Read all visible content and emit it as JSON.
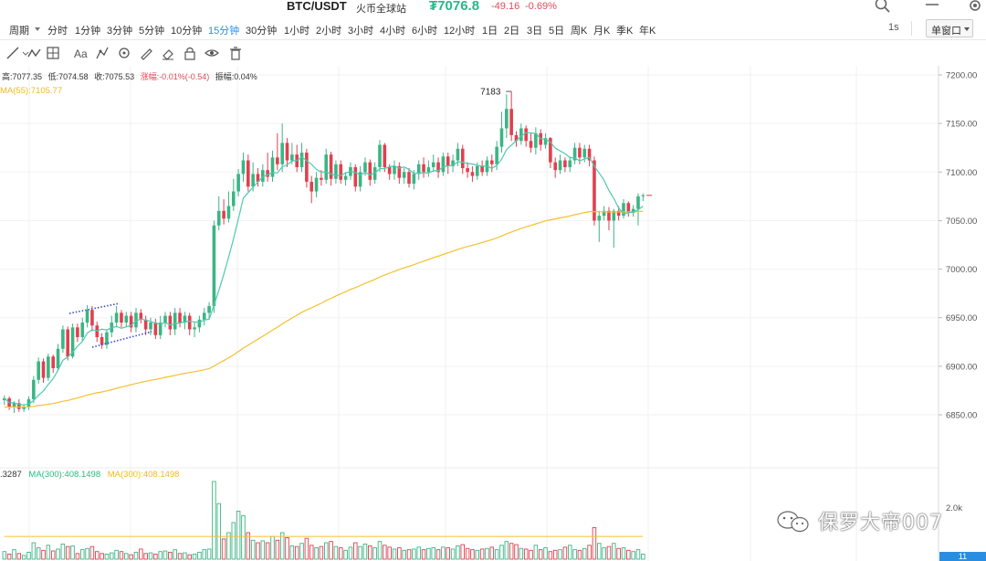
{
  "header": {
    "pair": "BTC/USDT",
    "exchange": "火币全球站",
    "price": "₮7076.8",
    "change": "-49.16",
    "change_pct": "-0.69%"
  },
  "intervals": {
    "period_label": "周期",
    "items": [
      "分时",
      "1分钟",
      "3分钟",
      "5分钟",
      "10分钟",
      "15分钟",
      "30分钟",
      "1小时",
      "2小时",
      "3小时",
      "4小时",
      "6小时",
      "12小时",
      "1日",
      "2日",
      "3日",
      "5日",
      "周K",
      "月K",
      "季K",
      "年K"
    ],
    "active": "15分钟",
    "sec_label": "1s",
    "window_mode": "单窗口"
  },
  "ohlc": {
    "high": "高:7077.35",
    "low": "低:7074.58",
    "close": "收:7075.53",
    "change": "涨幅:-0.01%(-0.54)",
    "amplitude": "振幅:0.04%"
  },
  "ma55_label": "MA(55):7105.77",
  "volume": {
    "value": ".3287",
    "ma_a": "MA(300):408.1498",
    "ma_b": "MA(300):408.1498",
    "axis_label": "2.0k"
  },
  "watermark": "保罗大帝007",
  "current_price_tag": "11",
  "colors": {
    "up": "#3bb584",
    "down": "#e0404f",
    "ma55": "#f5c02f",
    "ma_short": "#4ec9b0",
    "accent": "#2a8ee0"
  },
  "chart_data": {
    "type": "candlestick",
    "y_ticks": [
      7200,
      7150,
      7100,
      7050,
      7000,
      6950,
      6900,
      6850
    ],
    "y_tick_labels": [
      "7200.00",
      "7150.00",
      "7100.00",
      "7050.00",
      "7000.00",
      "6950.00",
      "6900.00",
      "6850.00"
    ],
    "ylim": [
      6830,
      7210
    ],
    "high_annotation": "7183",
    "candles": [
      [
        6865,
        6867,
        6860,
        6870
      ],
      [
        6867,
        6858,
        6855,
        6869
      ],
      [
        6858,
        6862,
        6852,
        6864
      ],
      [
        6862,
        6856,
        6853,
        6866
      ],
      [
        6856,
        6858,
        6853,
        6861
      ],
      [
        6858,
        6866,
        6855,
        6869
      ],
      [
        6866,
        6886,
        6862,
        6890
      ],
      [
        6886,
        6905,
        6882,
        6909
      ],
      [
        6905,
        6888,
        6883,
        6908
      ],
      [
        6888,
        6910,
        6885,
        6913
      ],
      [
        6910,
        6898,
        6893,
        6912
      ],
      [
        6898,
        6918,
        6895,
        6923
      ],
      [
        6918,
        6938,
        6914,
        6942
      ],
      [
        6938,
        6910,
        6906,
        6941
      ],
      [
        6910,
        6940,
        6908,
        6944
      ],
      [
        6940,
        6930,
        6925,
        6944
      ],
      [
        6930,
        6945,
        6926,
        6950
      ],
      [
        6945,
        6958,
        6940,
        6963
      ],
      [
        6958,
        6942,
        6936,
        6962
      ],
      [
        6942,
        6930,
        6925,
        6946
      ],
      [
        6930,
        6922,
        6918,
        6934
      ],
      [
        6922,
        6935,
        6918,
        6938
      ],
      [
        6935,
        6945,
        6930,
        6952
      ],
      [
        6945,
        6955,
        6940,
        6962
      ],
      [
        6955,
        6945,
        6940,
        6958
      ],
      [
        6945,
        6952,
        6940,
        6956
      ],
      [
        6952,
        6940,
        6935,
        6956
      ],
      [
        6940,
        6955,
        6935,
        6960
      ],
      [
        6955,
        6948,
        6944,
        6959
      ],
      [
        6948,
        6938,
        6932,
        6952
      ],
      [
        6938,
        6945,
        6932,
        6950
      ],
      [
        6945,
        6932,
        6928,
        6949
      ],
      [
        6932,
        6945,
        6928,
        6952
      ],
      [
        6945,
        6952,
        6940,
        6956
      ],
      [
        6952,
        6938,
        6932,
        6956
      ],
      [
        6938,
        6955,
        6932,
        6960
      ],
      [
        6955,
        6945,
        6940,
        6960
      ],
      [
        6945,
        6952,
        6938,
        6956
      ],
      [
        6952,
        6938,
        6932,
        6955
      ],
      [
        6938,
        6940,
        6930,
        6946
      ],
      [
        6940,
        6948,
        6935,
        6952
      ],
      [
        6948,
        6955,
        6942,
        6960
      ],
      [
        6955,
        6962,
        6948,
        6966
      ],
      [
        6962,
        7045,
        6955,
        7050
      ],
      [
        7045,
        7060,
        7040,
        7075
      ],
      [
        7060,
        7052,
        7046,
        7072
      ],
      [
        7052,
        7065,
        7048,
        7080
      ],
      [
        7065,
        7080,
        7060,
        7093
      ],
      [
        7080,
        7098,
        7075,
        7103
      ],
      [
        7098,
        7112,
        7090,
        7120
      ],
      [
        7112,
        7085,
        7080,
        7118
      ],
      [
        7085,
        7098,
        7080,
        7110
      ],
      [
        7098,
        7090,
        7085,
        7104
      ],
      [
        7090,
        7102,
        7085,
        7108
      ],
      [
        7102,
        7095,
        7090,
        7120
      ],
      [
        7095,
        7115,
        7090,
        7122
      ],
      [
        7115,
        7108,
        7102,
        7140
      ],
      [
        7108,
        7130,
        7100,
        7150
      ],
      [
        7130,
        7112,
        7105,
        7135
      ],
      [
        7112,
        7118,
        7108,
        7130
      ],
      [
        7118,
        7105,
        7100,
        7128
      ],
      [
        7105,
        7120,
        7100,
        7130
      ],
      [
        7120,
        7090,
        7084,
        7124
      ],
      [
        7090,
        7080,
        7068,
        7096
      ],
      [
        7080,
        7094,
        7074,
        7100
      ],
      [
        7094,
        7092,
        7086,
        7102
      ],
      [
        7092,
        7118,
        7088,
        7124
      ],
      [
        7118,
        7093,
        7086,
        7121
      ],
      [
        7093,
        7108,
        7088,
        7112
      ],
      [
        7108,
        7092,
        7088,
        7112
      ],
      [
        7092,
        7096,
        7086,
        7100
      ],
      [
        7096,
        7105,
        7092,
        7110
      ],
      [
        7105,
        7085,
        7080,
        7108
      ],
      [
        7085,
        7100,
        7080,
        7106
      ],
      [
        7100,
        7110,
        7096,
        7115
      ],
      [
        7110,
        7092,
        7086,
        7113
      ],
      [
        7092,
        7105,
        7088,
        7110
      ],
      [
        7105,
        7128,
        7100,
        7133
      ],
      [
        7128,
        7105,
        7100,
        7130
      ],
      [
        7105,
        7098,
        7092,
        7108
      ],
      [
        7098,
        7106,
        7092,
        7112
      ],
      [
        7106,
        7094,
        7088,
        7110
      ],
      [
        7094,
        7100,
        7088,
        7104
      ],
      [
        7100,
        7088,
        7084,
        7104
      ],
      [
        7088,
        7098,
        7082,
        7102
      ],
      [
        7098,
        7108,
        7092,
        7112
      ],
      [
        7108,
        7100,
        7094,
        7115
      ],
      [
        7100,
        7105,
        7095,
        7112
      ],
      [
        7105,
        7110,
        7100,
        7118
      ],
      [
        7110,
        7100,
        7094,
        7115
      ],
      [
        7100,
        7116,
        7096,
        7120
      ],
      [
        7116,
        7106,
        7098,
        7120
      ],
      [
        7106,
        7112,
        7100,
        7118
      ],
      [
        7112,
        7124,
        7106,
        7130
      ],
      [
        7124,
        7104,
        7098,
        7128
      ],
      [
        7104,
        7100,
        7094,
        7110
      ],
      [
        7100,
        7096,
        7090,
        7106
      ],
      [
        7096,
        7106,
        7092,
        7110
      ],
      [
        7106,
        7100,
        7096,
        7112
      ],
      [
        7100,
        7112,
        7096,
        7116
      ],
      [
        7112,
        7108,
        7100,
        7118
      ],
      [
        7108,
        7126,
        7102,
        7132
      ],
      [
        7126,
        7145,
        7120,
        7162
      ],
      [
        7145,
        7165,
        7135,
        7180
      ],
      [
        7165,
        7138,
        7132,
        7183
      ],
      [
        7138,
        7132,
        7126,
        7142
      ],
      [
        7132,
        7145,
        7128,
        7150
      ],
      [
        7145,
        7132,
        7126,
        7148
      ],
      [
        7132,
        7125,
        7120,
        7140
      ],
      [
        7125,
        7140,
        7118,
        7146
      ],
      [
        7140,
        7128,
        7122,
        7144
      ],
      [
        7128,
        7135,
        7124,
        7140
      ],
      [
        7135,
        7110,
        7104,
        7136
      ],
      [
        7110,
        7102,
        7094,
        7115
      ],
      [
        7102,
        7112,
        7098,
        7118
      ],
      [
        7112,
        7105,
        7100,
        7115
      ],
      [
        7105,
        7112,
        7100,
        7116
      ],
      [
        7112,
        7125,
        7108,
        7130
      ],
      [
        7125,
        7115,
        7108,
        7130
      ],
      [
        7115,
        7124,
        7110,
        7128
      ],
      [
        7124,
        7112,
        7106,
        7128
      ],
      [
        7112,
        7050,
        7045,
        7116
      ],
      [
        7050,
        7055,
        7028,
        7060
      ],
      [
        7055,
        7060,
        7050,
        7065
      ],
      [
        7060,
        7050,
        7040,
        7064
      ],
      [
        7050,
        7060,
        7022,
        7062
      ],
      [
        7060,
        7055,
        7050,
        7065
      ],
      [
        7055,
        7068,
        7052,
        7072
      ],
      [
        7068,
        7058,
        7054,
        7070
      ],
      [
        7058,
        7062,
        7054,
        7066
      ],
      [
        7062,
        7075,
        7045,
        7078
      ],
      [
        7075,
        7076,
        7070,
        7078
      ]
    ],
    "volumes": [
      120,
      80,
      150,
      90,
      60,
      110,
      260,
      180,
      140,
      220,
      130,
      160,
      240,
      200,
      210,
      90,
      150,
      170,
      200,
      120,
      90,
      80,
      100,
      140,
      120,
      90,
      70,
      110,
      160,
      90,
      100,
      80,
      120,
      130,
      110,
      150,
      90,
      100,
      70,
      80,
      110,
      150,
      160,
      1230,
      880,
      320,
      420,
      580,
      760,
      690,
      420,
      300,
      260,
      290,
      260,
      360,
      300,
      420,
      340,
      210,
      200,
      250,
      330,
      220,
      180,
      200,
      260,
      280,
      200,
      180,
      140,
      190,
      260,
      200,
      240,
      210,
      180,
      280,
      220,
      190,
      160,
      180,
      140,
      150,
      160,
      190,
      150,
      170,
      180,
      150,
      190,
      180,
      160,
      210,
      230,
      170,
      150,
      140,
      160,
      170,
      190,
      150,
      220,
      280,
      250,
      230,
      170,
      160,
      140,
      220,
      150,
      180,
      120,
      140,
      150,
      190,
      220,
      150,
      140,
      170,
      220,
      500,
      250,
      180,
      200,
      250,
      170,
      180,
      140,
      120,
      150,
      80
    ]
  }
}
